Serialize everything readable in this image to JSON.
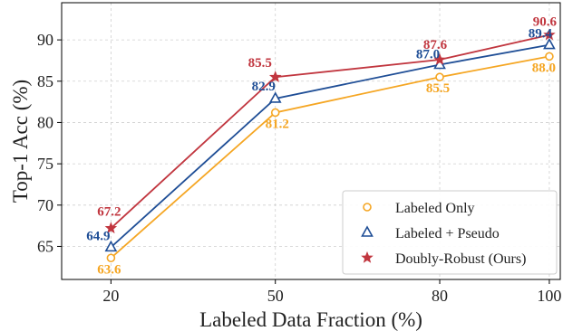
{
  "chart_data": {
    "type": "line",
    "x": [
      20,
      50,
      80,
      100
    ],
    "xticks": [
      "20",
      "50",
      "80",
      "100"
    ],
    "xlabel": "Labeled Data Fraction (%)",
    "ylabel": "Top-1 Acc (%)",
    "ylim": [
      61,
      94.5
    ],
    "yticks": [
      "65",
      "70",
      "75",
      "80",
      "85",
      "90"
    ],
    "grid": true,
    "legend_position": "lower-right",
    "series": [
      {
        "name": "Labeled Only",
        "marker": "circle",
        "color": "#F5A623",
        "values": [
          63.6,
          81.2,
          85.5,
          88.0
        ],
        "labels": [
          "63.6",
          "81.2",
          "85.5",
          "88.0"
        ]
      },
      {
        "name": "Labeled + Pseudo",
        "marker": "triangle",
        "color": "#1F4E96",
        "values": [
          64.9,
          82.9,
          87.0,
          89.4
        ],
        "labels": [
          "64.9",
          "82.9",
          "87.0",
          "89.4"
        ]
      },
      {
        "name": "Doubly-Robust (Ours)",
        "marker": "star",
        "color": "#C1363F",
        "values": [
          67.2,
          85.5,
          87.6,
          90.6
        ],
        "labels": [
          "67.2",
          "85.5",
          "87.6",
          "90.6"
        ]
      }
    ]
  }
}
